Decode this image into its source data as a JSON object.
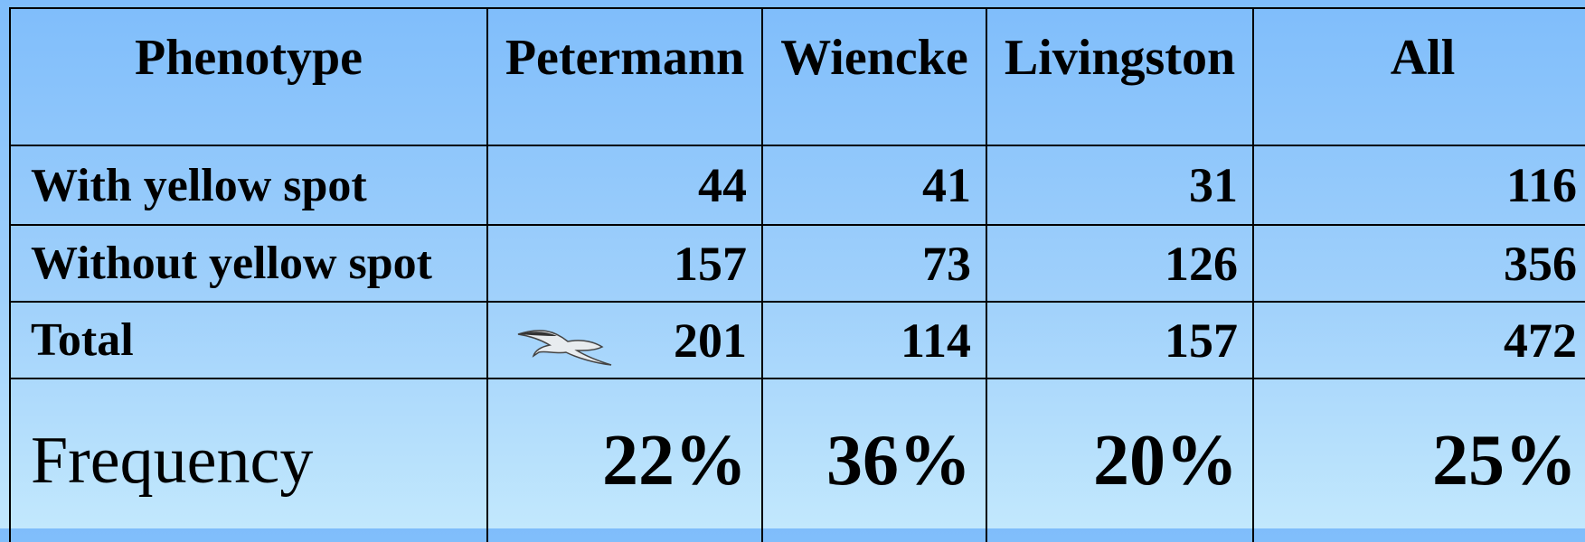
{
  "table": {
    "header": [
      "Phenotype",
      "Petermann",
      "Wiencke",
      "Livingston",
      "All"
    ],
    "rows": [
      [
        "With yellow spot",
        44,
        41,
        31,
        116
      ],
      [
        "Without yellow spot",
        157,
        73,
        126,
        356
      ],
      [
        "Total",
        201,
        114,
        157,
        472
      ],
      [
        "Frequency",
        "22%",
        "36%",
        "20%",
        "25%"
      ]
    ]
  }
}
